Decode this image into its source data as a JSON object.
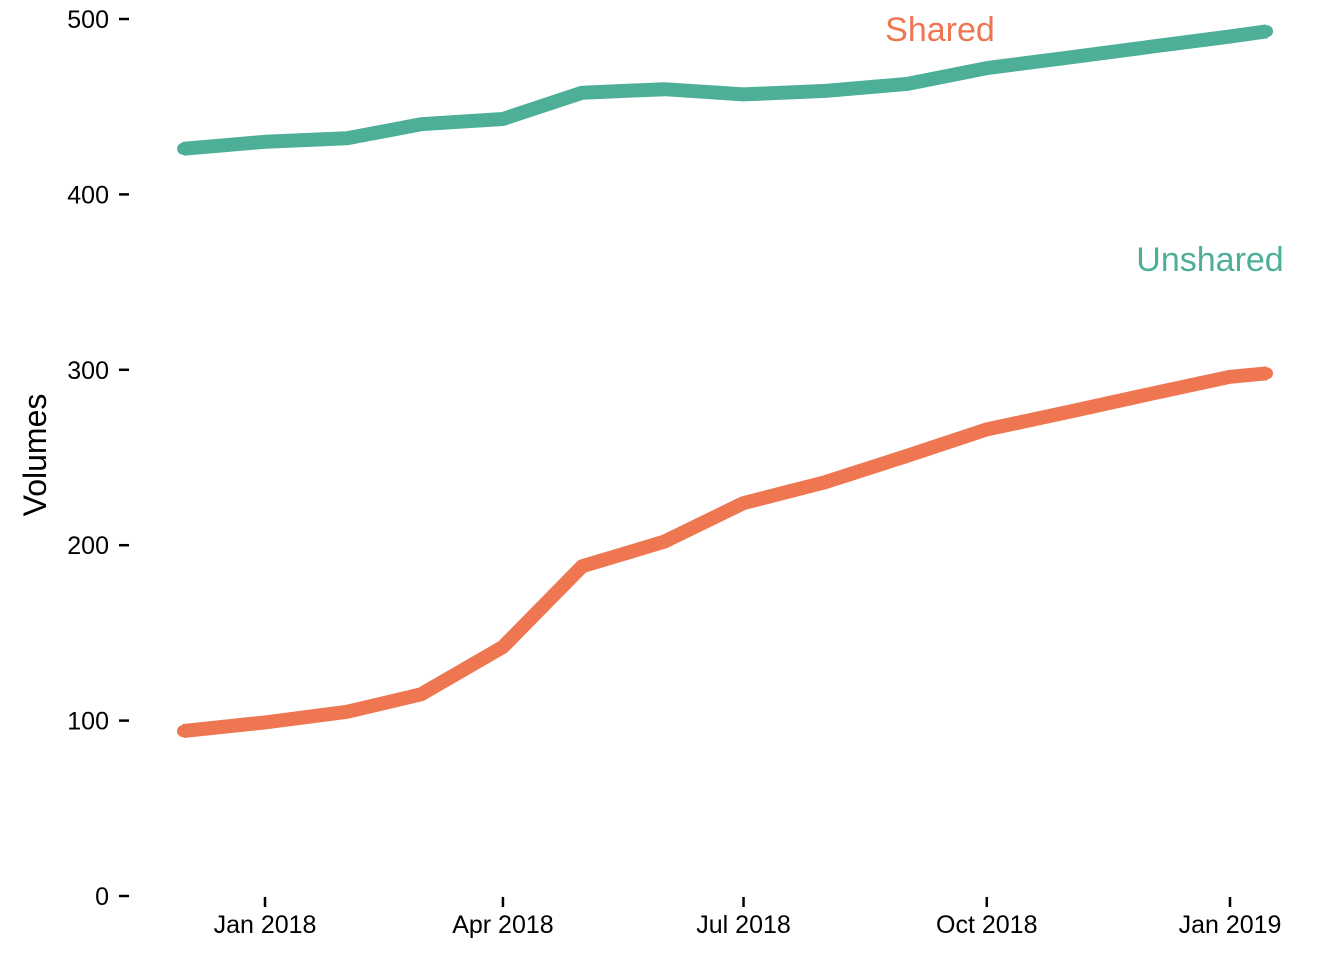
{
  "chart_data": {
    "type": "line",
    "title": "",
    "xlabel": "",
    "ylabel": "Volumes",
    "ylim": [
      0,
      500
    ],
    "y_ticks": [
      "0",
      "100",
      "200",
      "300",
      "400",
      "500"
    ],
    "x_ticks": [
      {
        "date": "2018-01-01",
        "label": "Jan 2018"
      },
      {
        "date": "2018-04-01",
        "label": "Apr 2018"
      },
      {
        "date": "2018-07-01",
        "label": "Jul 2018"
      },
      {
        "date": "2018-10-01",
        "label": "Oct 2018"
      },
      {
        "date": "2019-01-01",
        "label": "Jan 2019"
      }
    ],
    "x": [
      "2017-12-01",
      "2018-01-01",
      "2018-02-01",
      "2018-03-01",
      "2018-04-01",
      "2018-05-01",
      "2018-06-01",
      "2018-07-01",
      "2018-08-01",
      "2018-09-01",
      "2018-10-01",
      "2018-11-01",
      "2018-12-01",
      "2019-01-01",
      "2019-01-15"
    ],
    "series": [
      {
        "label": "Unshared",
        "color": "#4DAF97",
        "values": [
          426,
          430,
          432,
          440,
          443,
          458,
          460,
          457,
          459,
          463,
          472,
          478,
          484,
          490,
          493
        ]
      },
      {
        "label": "Shared",
        "color": "#EE7651",
        "values": [
          94,
          99,
          105,
          115,
          142,
          188,
          202,
          224,
          236,
          251,
          266,
          276,
          286,
          296,
          298
        ]
      }
    ],
    "grid": false,
    "legend": "direct labels"
  }
}
